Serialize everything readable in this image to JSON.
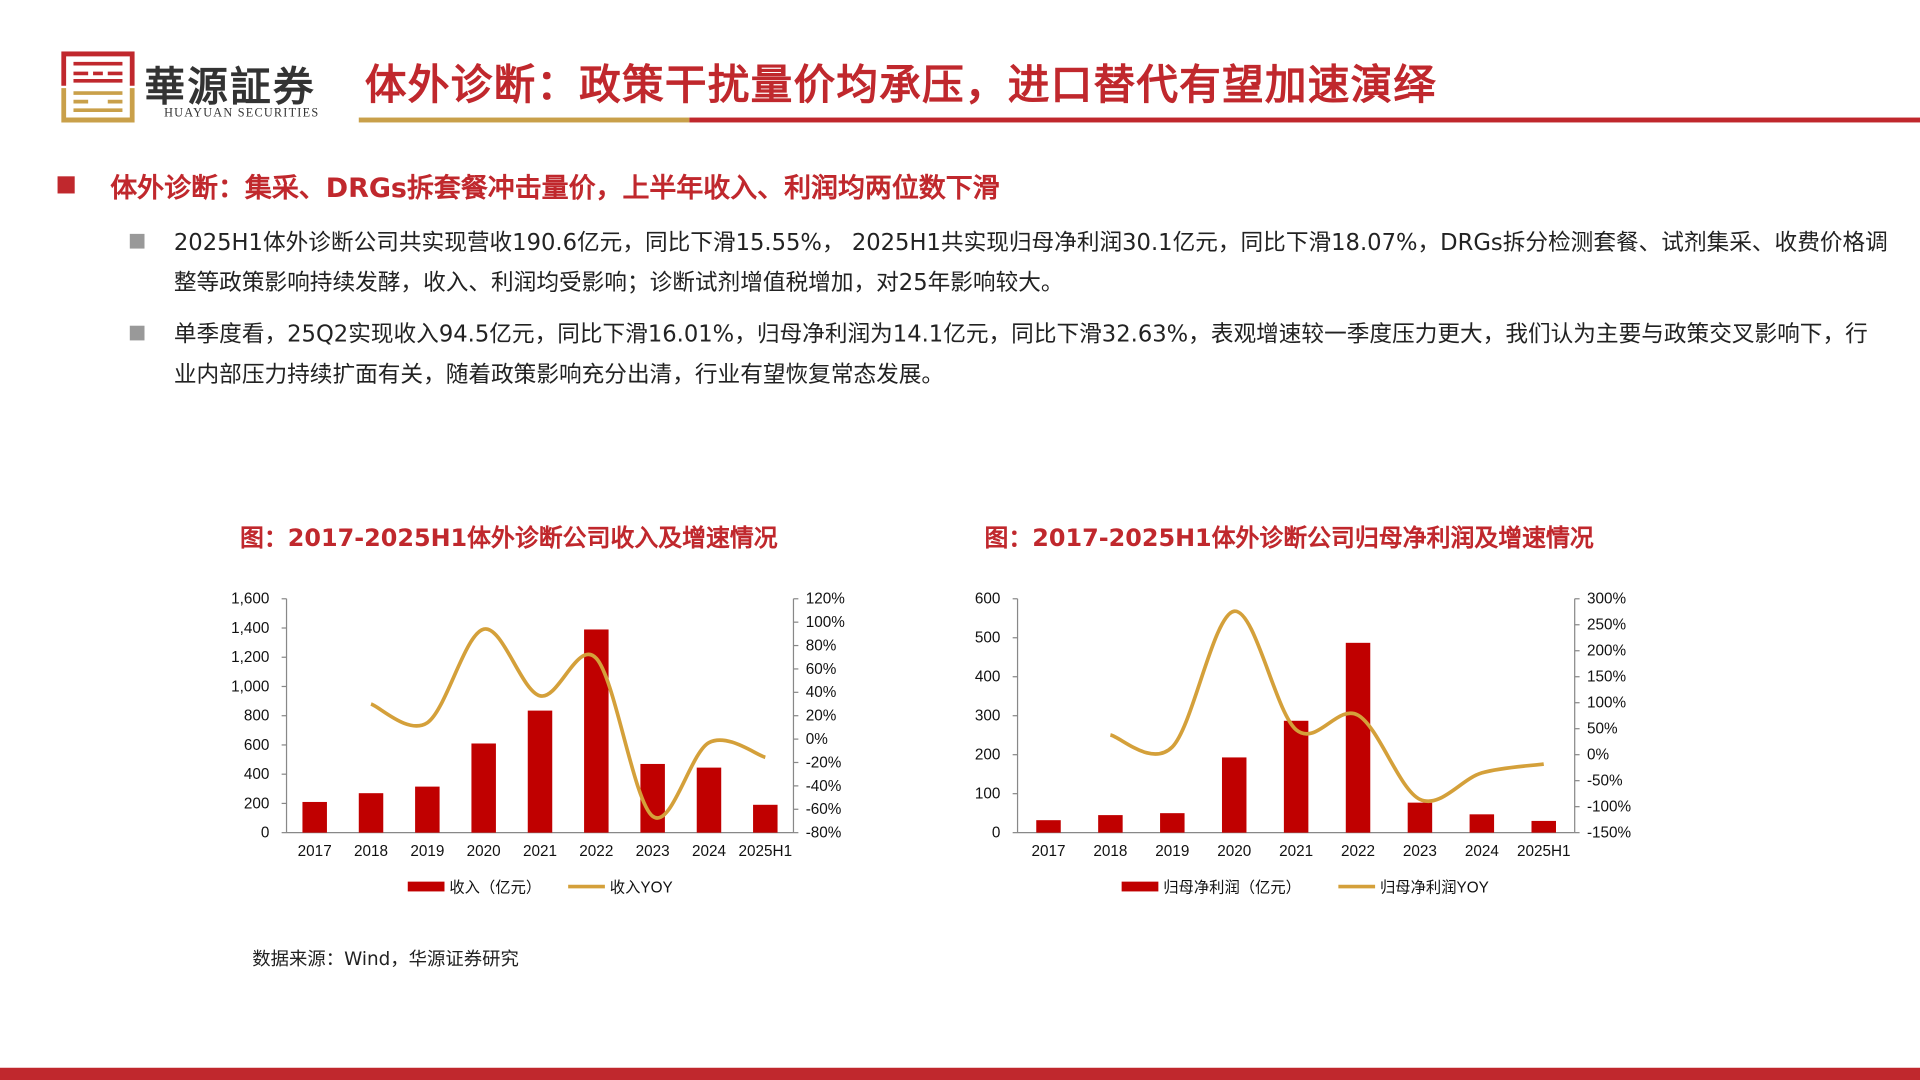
{
  "header": {
    "logo_text": "華源証券",
    "logo_sub": "HUAYUAN SECURITIES",
    "title": "体外诊断：政策干扰量价均承压，进口替代有望加速演绎"
  },
  "section": {
    "title": "体外诊断：集采、DRGs拆套餐冲击量价，上半年收入、利润均两位数下滑",
    "paragraphs": [
      "2025H1体外诊断公司共实现营收190.6亿元，同比下滑15.55%， 2025H1共实现归母净利润30.1亿元，同比下滑18.07%，DRGs拆分检测套餐、试剂集采、收费价格调整等政策影响持续发酵，收入、利润均受影响；诊断试剂增值税增加，对25年影响较大。",
      "单季度看，25Q2实现收入94.5亿元，同比下滑16.01%，归母净利润为14.1亿元，同比下滑32.63%，表观增速较一季度压力更大，我们认为主要与政策交叉影响下，行业内部压力持续扩面有关，随着政策影响充分出清，行业有望恢复常态发展。"
    ]
  },
  "source": "数据来源：Wind，华源证券研究",
  "colors": {
    "brand_red": "#c0282d",
    "bar": "#c00000",
    "line": "#d4a03a",
    "gold": "#c9a04a"
  },
  "chart_data": [
    {
      "type": "bar+line",
      "title": "图：2017-2025H1体外诊断公司收入及增速情况",
      "categories": [
        "2017",
        "2018",
        "2019",
        "2020",
        "2021",
        "2022",
        "2023",
        "2024",
        "2025H1"
      ],
      "series": [
        {
          "name": "收入（亿元）",
          "type": "bar",
          "axis": "left",
          "values": [
            210,
            270,
            315,
            610,
            835,
            1390,
            470,
            445,
            190.6
          ]
        },
        {
          "name": "收入YOY",
          "type": "line",
          "axis": "right",
          "values": [
            null,
            30,
            14,
            94,
            37,
            69,
            -66,
            -3,
            -15.55
          ]
        }
      ],
      "left_axis": {
        "ylim": [
          0,
          1600
        ],
        "ticks": [
          "0",
          "200",
          "400",
          "600",
          "800",
          "1,000",
          "1,200",
          "1,400",
          "1,600"
        ]
      },
      "right_axis": {
        "ylim": [
          -80,
          120
        ],
        "ticks": [
          "-80%",
          "-60%",
          "-40%",
          "-20%",
          "0%",
          "20%",
          "40%",
          "60%",
          "80%",
          "100%",
          "120%"
        ]
      },
      "legend": "bottom",
      "grid": false
    },
    {
      "type": "bar+line",
      "title": "图：2017-2025H1体外诊断公司归母净利润及增速情况",
      "categories": [
        "2017",
        "2018",
        "2019",
        "2020",
        "2021",
        "2022",
        "2023",
        "2024",
        "2025H1"
      ],
      "series": [
        {
          "name": "归母净利润（亿元）",
          "type": "bar",
          "axis": "left",
          "values": [
            32,
            45,
            50,
            193,
            287,
            487,
            77,
            47,
            30.1
          ]
        },
        {
          "name": "归母净利润YOY",
          "type": "line",
          "axis": "right",
          "values": [
            null,
            38,
            15,
            276,
            48,
            76,
            -86,
            -35,
            -18.07
          ]
        }
      ],
      "left_axis": {
        "ylim": [
          0,
          600
        ],
        "ticks": [
          "0",
          "100",
          "200",
          "300",
          "400",
          "500",
          "600"
        ]
      },
      "right_axis": {
        "ylim": [
          -150,
          300
        ],
        "ticks": [
          "-150%",
          "-100%",
          "-50%",
          "0%",
          "50%",
          "100%",
          "150%",
          "200%",
          "250%",
          "300%"
        ]
      },
      "legend": "bottom",
      "grid": false
    }
  ]
}
